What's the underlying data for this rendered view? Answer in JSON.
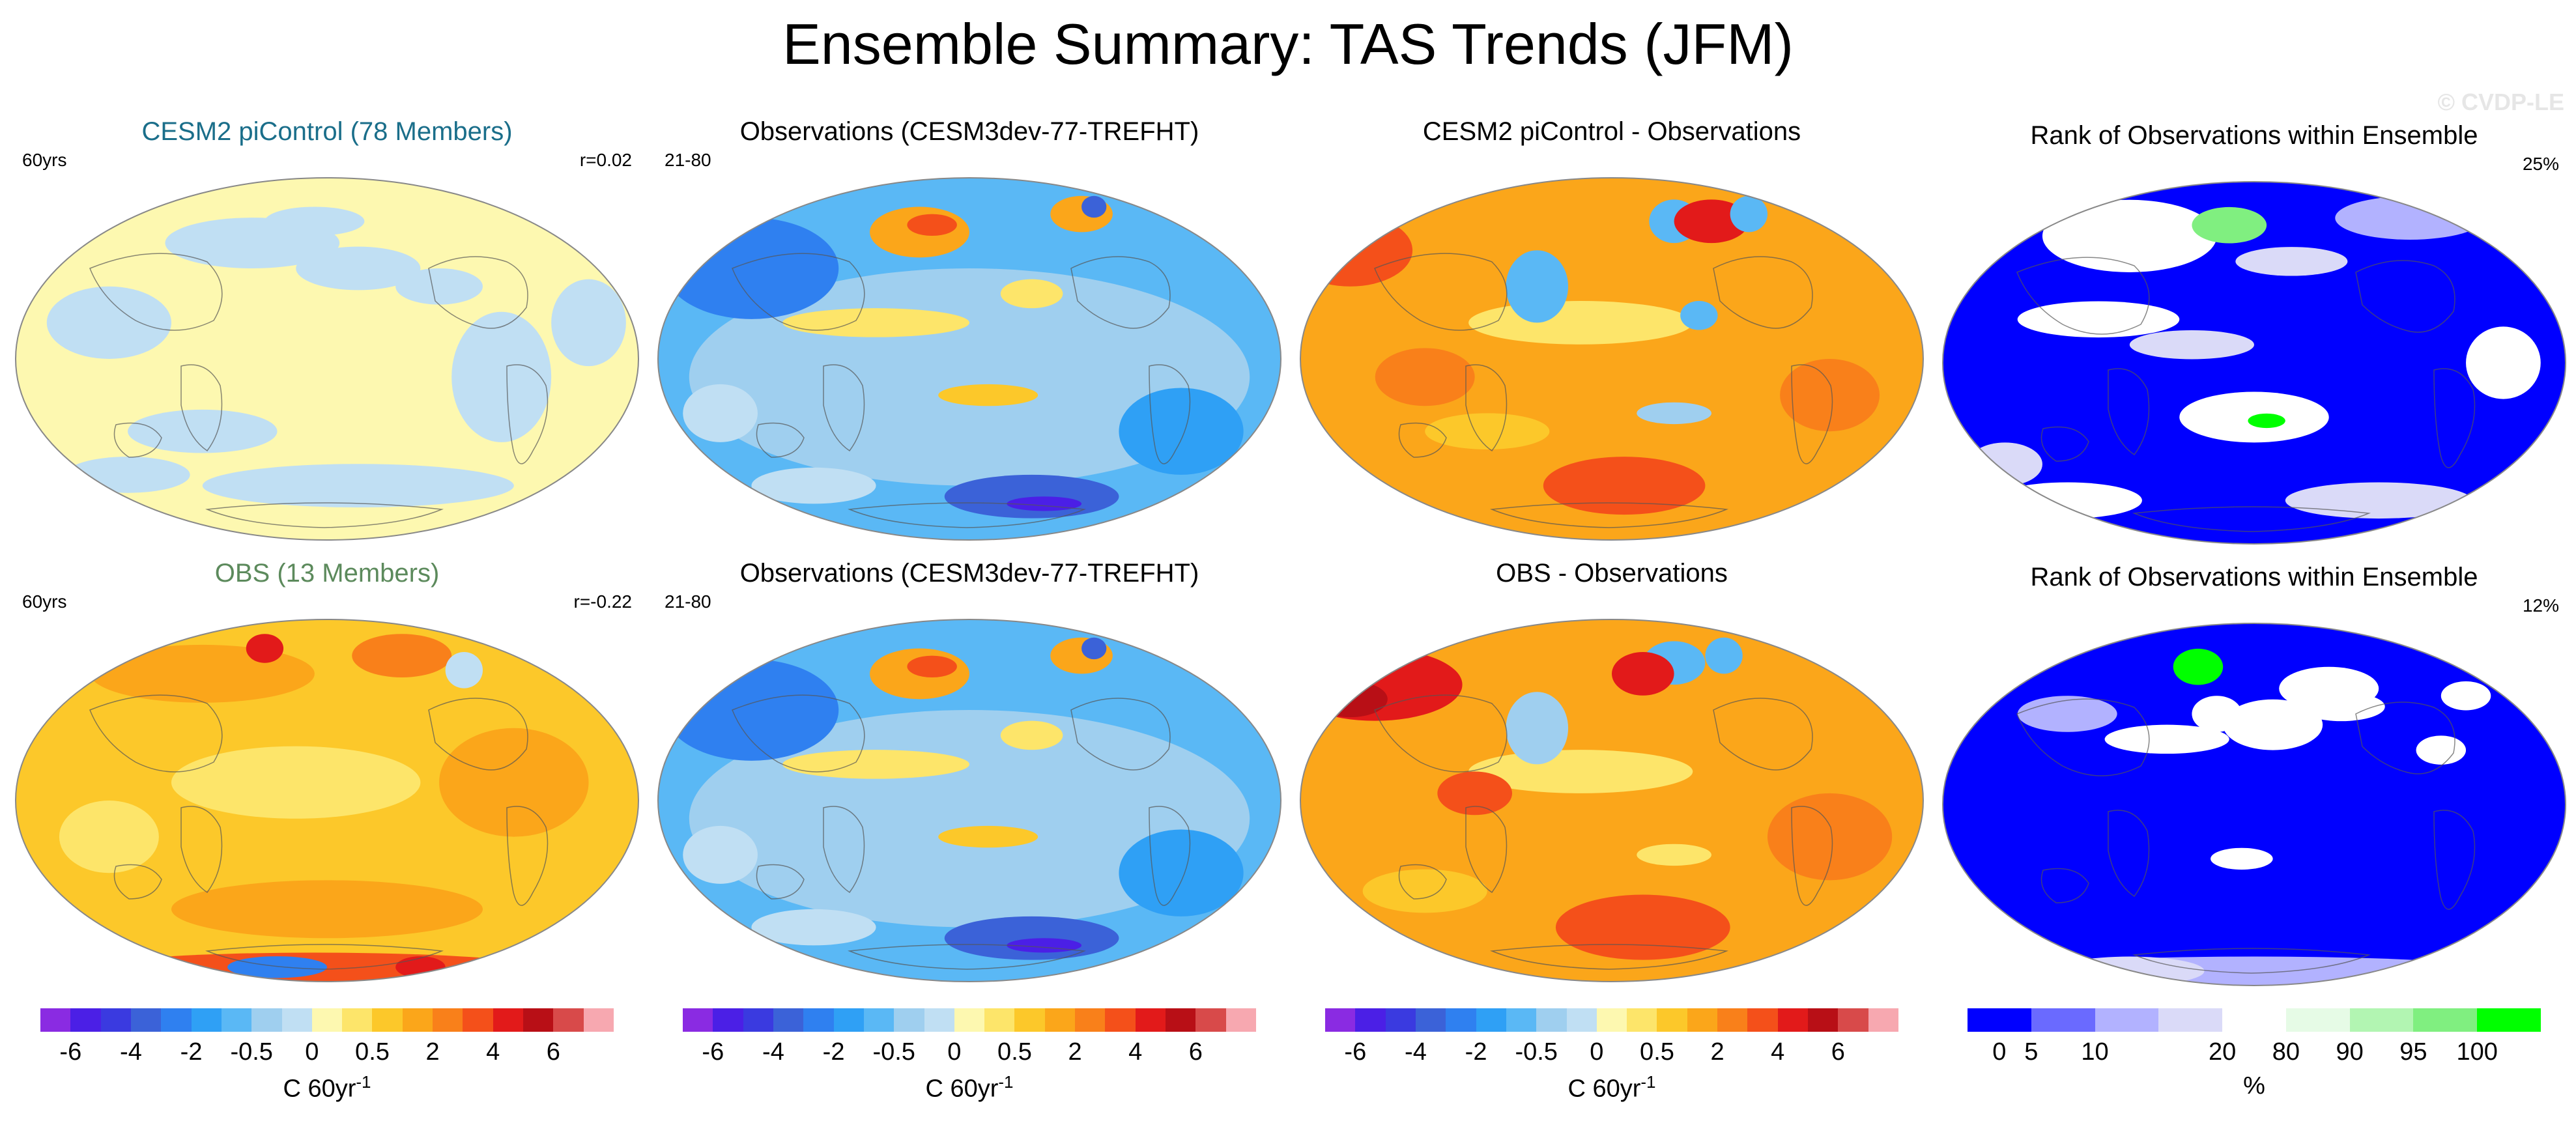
{
  "title": "Ensemble Summary: TAS Trends (JFM)",
  "watermark": "© CVDP-LE",
  "row1": {
    "p1": {
      "title": "CESM2 piControl (78 Members)",
      "title_color": "#1a6e8a",
      "left": "60yrs",
      "right": "r=0.02",
      "scheme": "pale"
    },
    "p2": {
      "title": "Observations (CESM3dev-77-TREFHT)",
      "title_color": "#000000",
      "left": "21-80",
      "right": "",
      "scheme": "cool"
    },
    "p3": {
      "title": "CESM2 piControl - Observations",
      "title_color": "#000000",
      "left": "",
      "right": "",
      "scheme": "warm"
    },
    "p4": {
      "title": "Rank of Observations within Ensemble",
      "title_color": "#000000",
      "left": "",
      "right": "25%",
      "scheme": "rank"
    }
  },
  "row2": {
    "p1": {
      "title": "OBS (13 Members)",
      "title_color": "#5c8a5c",
      "left": "60yrs",
      "right": "r=-0.22",
      "scheme": "mild"
    },
    "p2": {
      "title": "Observations (CESM3dev-77-TREFHT)",
      "title_color": "#000000",
      "left": "21-80",
      "right": "",
      "scheme": "cool"
    },
    "p3": {
      "title": "OBS - Observations",
      "title_color": "#000000",
      "left": "",
      "right": "",
      "scheme": "warm2"
    },
    "p4": {
      "title": "Rank of Observations within Ensemble",
      "title_color": "#000000",
      "left": "",
      "right": "12%",
      "scheme": "rank2"
    }
  },
  "trend_colorbar": {
    "colors": [
      "#8a2be2",
      "#4b1fe6",
      "#3a3ae0",
      "#3b62d8",
      "#2f80f0",
      "#2fa0f5",
      "#5ab8f5",
      "#9fcfef",
      "#c0dff3",
      "#fdf8b0",
      "#fde56a",
      "#fcc82a",
      "#fba61a",
      "#f9801a",
      "#f4501a",
      "#e21a1a",
      "#b80f16",
      "#d84a4a",
      "#f7a8b0"
    ],
    "ticks": [
      "-6",
      "-4",
      "-2",
      "-0.5",
      "0",
      "0.5",
      "2",
      "4",
      "6"
    ],
    "tick_bounds": [
      1,
      3,
      5,
      7,
      9,
      11,
      13,
      15,
      17
    ],
    "unit": "C 60yr",
    "unit_sup": "-1"
  },
  "rank_colorbar": {
    "colors": [
      "#0000ff",
      "#6a6aff",
      "#b2b2ff",
      "#dadaf8",
      "#ffffff",
      "#e6fbe6",
      "#b2f5b2",
      "#80ef80",
      "#00ff00"
    ],
    "ticks": [
      "0",
      "5",
      "10",
      "20",
      "80",
      "90",
      "95",
      "100"
    ],
    "tick_bounds": [
      0.5,
      1,
      2,
      4,
      5,
      6,
      7,
      8
    ],
    "unit": "%"
  }
}
